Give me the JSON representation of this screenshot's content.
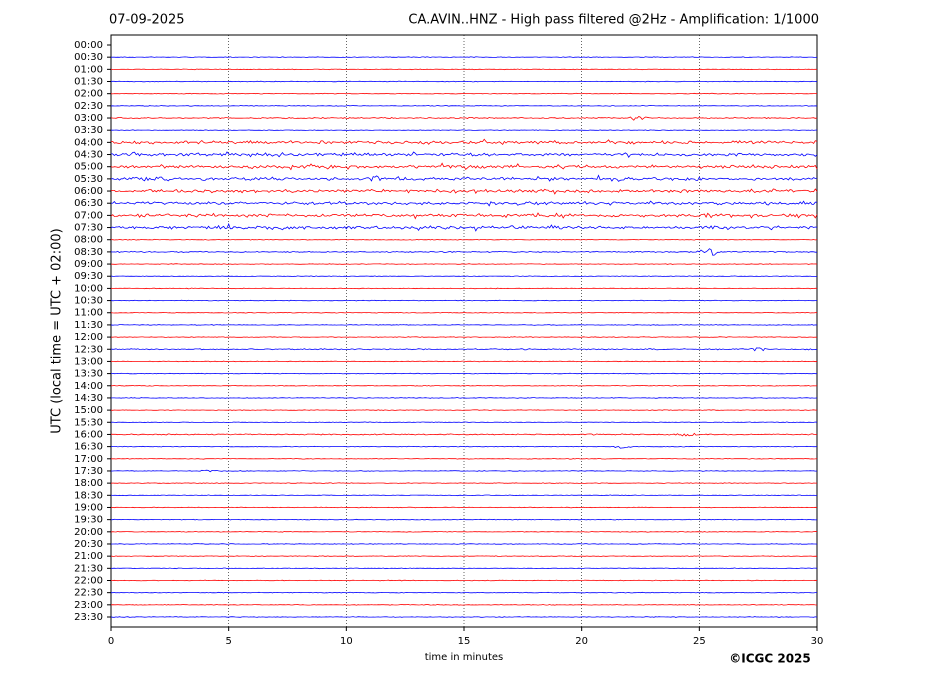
{
  "chart_data": {
    "type": "helicorder",
    "date": "07-09-2025",
    "title": "CA.AVIN..HNZ - High pass filtered @2Hz - Amplification: 1/1000",
    "ylabel": "UTC (local time = UTC + 02:00)",
    "xlabel": "time in minutes",
    "credit": "©ICGC 2025",
    "categories": [
      "00:00",
      "00:30",
      "01:00",
      "01:30",
      "02:00",
      "02:30",
      "03:00",
      "03:30",
      "04:00",
      "04:30",
      "05:00",
      "05:30",
      "06:00",
      "06:30",
      "07:00",
      "07:30",
      "08:00",
      "08:30",
      "09:00",
      "09:30",
      "10:00",
      "10:30",
      "11:00",
      "11:30",
      "12:00",
      "12:30",
      "13:00",
      "13:30",
      "14:00",
      "14:30",
      "15:00",
      "15:30",
      "16:00",
      "16:30",
      "17:00",
      "17:30",
      "18:00",
      "18:30",
      "19:00",
      "19:30",
      "20:00",
      "20:30",
      "21:00",
      "21:30",
      "22:00",
      "22:30",
      "23:00",
      "23:30"
    ],
    "colors": [
      "#ff0000",
      "#0000ff"
    ],
    "xlim": [
      0,
      30
    ],
    "xticks": [
      0,
      5,
      10,
      15,
      20,
      25,
      30
    ],
    "grid": true
  }
}
